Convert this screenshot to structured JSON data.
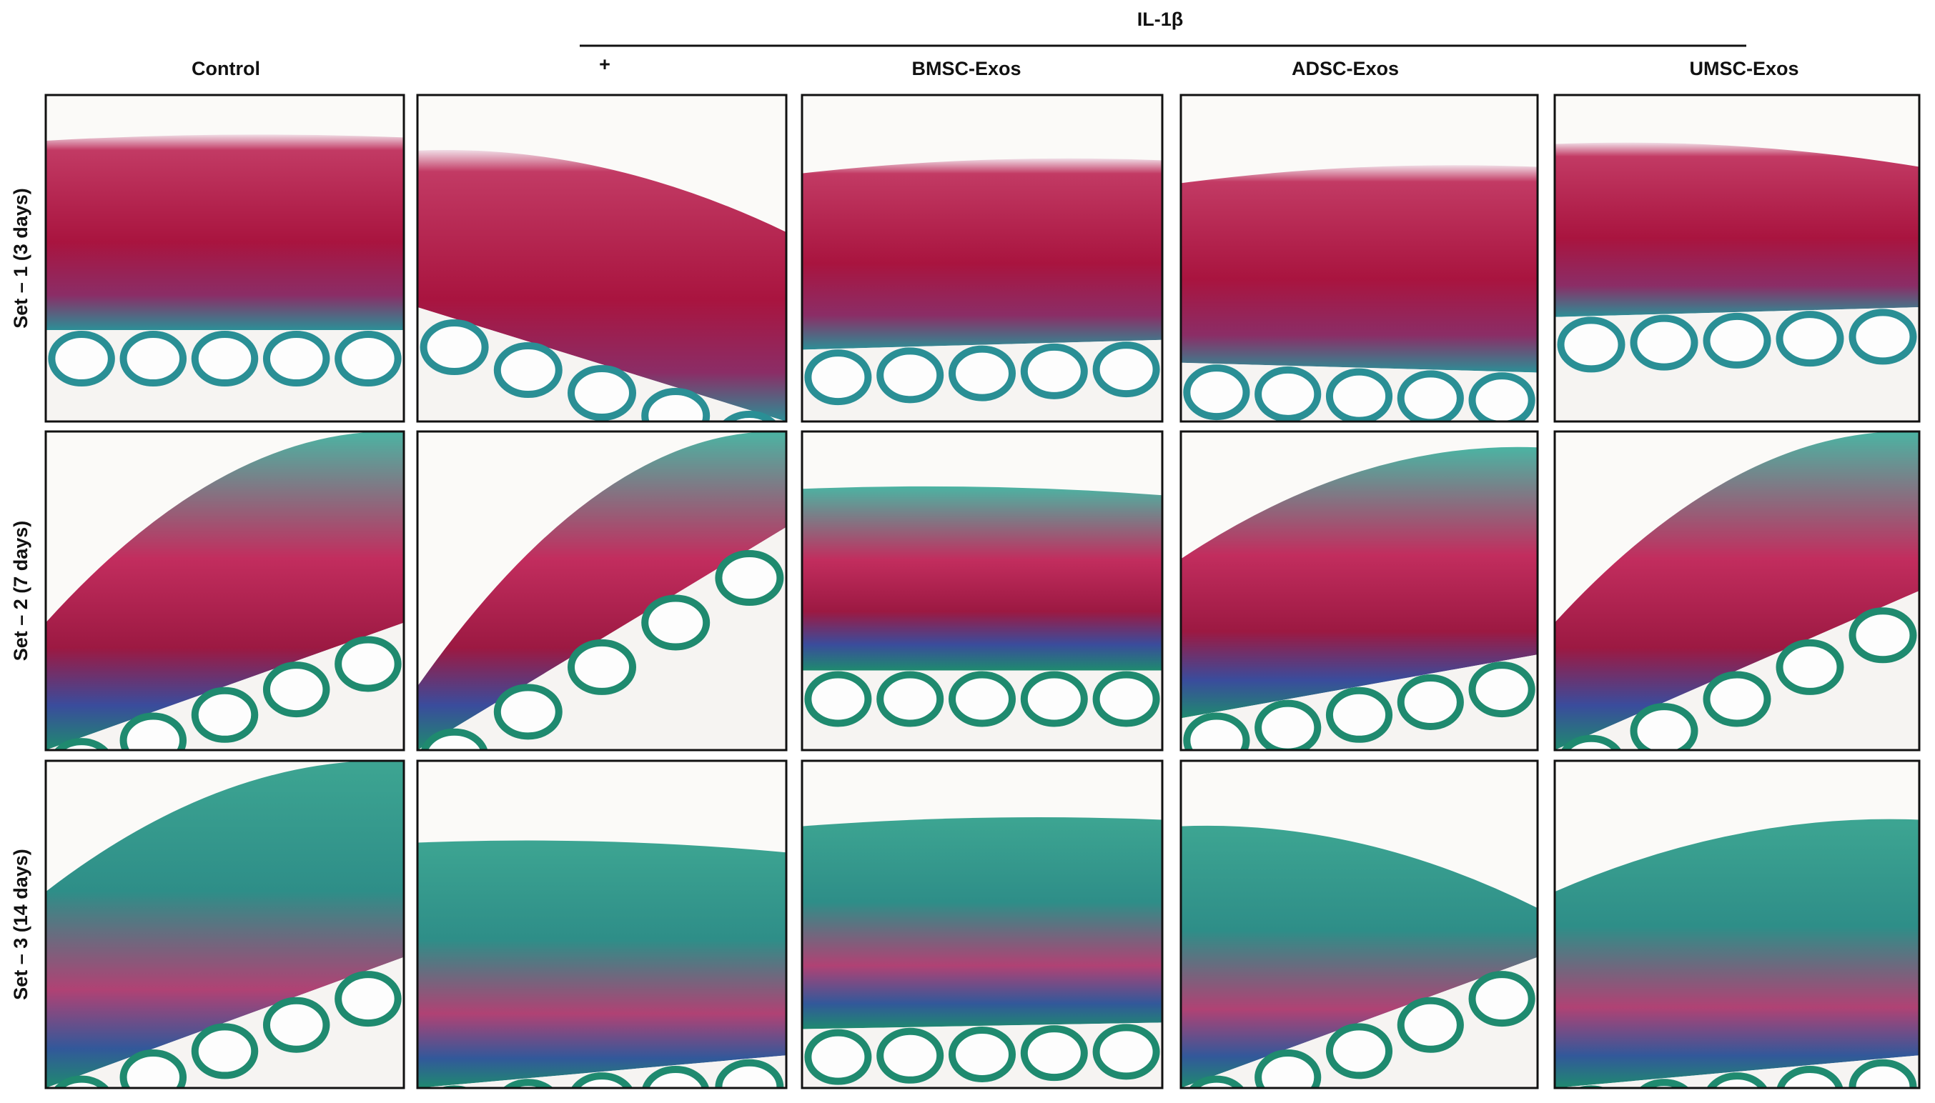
{
  "header": {
    "title": "IL-1β"
  },
  "columns": [
    "Control",
    "+",
    "BMSC-Exos",
    "ADSC-Exos",
    "UMSC-Exos"
  ],
  "rows": [
    "Set – 1 (3 days)",
    "Set – 2 (7 days)",
    "Set – 3 (14 days)"
  ]
}
